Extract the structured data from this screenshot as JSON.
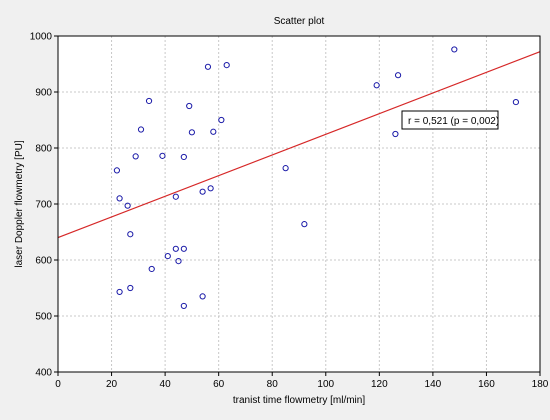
{
  "chart_data": {
    "type": "scatter",
    "title": "Scatter plot",
    "xlabel": "tranist time flowmetry [ml/min]",
    "ylabel": "laser Doppler flowmetry [PU]",
    "xlim": [
      0,
      180
    ],
    "ylim": [
      400,
      1000
    ],
    "xticks": [
      0,
      20,
      40,
      60,
      80,
      100,
      120,
      140,
      160,
      180
    ],
    "yticks": [
      400,
      500,
      600,
      700,
      800,
      900,
      1000
    ],
    "grid": true,
    "colors": {
      "points": "#1a1aa8",
      "regression": "#d62828"
    },
    "points": [
      {
        "x": 22,
        "y": 760
      },
      {
        "x": 23,
        "y": 710
      },
      {
        "x": 23,
        "y": 543
      },
      {
        "x": 26,
        "y": 697
      },
      {
        "x": 27,
        "y": 646
      },
      {
        "x": 27,
        "y": 550
      },
      {
        "x": 29,
        "y": 785
      },
      {
        "x": 31,
        "y": 833
      },
      {
        "x": 34,
        "y": 884
      },
      {
        "x": 35,
        "y": 584
      },
      {
        "x": 39,
        "y": 786
      },
      {
        "x": 41,
        "y": 607
      },
      {
        "x": 44,
        "y": 713
      },
      {
        "x": 44,
        "y": 620
      },
      {
        "x": 45,
        "y": 598
      },
      {
        "x": 47,
        "y": 784
      },
      {
        "x": 47,
        "y": 620
      },
      {
        "x": 47,
        "y": 518
      },
      {
        "x": 49,
        "y": 875
      },
      {
        "x": 50,
        "y": 828
      },
      {
        "x": 54,
        "y": 722
      },
      {
        "x": 54,
        "y": 535
      },
      {
        "x": 56,
        "y": 945
      },
      {
        "x": 57,
        "y": 728
      },
      {
        "x": 58,
        "y": 829
      },
      {
        "x": 61,
        "y": 850
      },
      {
        "x": 63,
        "y": 948
      },
      {
        "x": 85,
        "y": 764
      },
      {
        "x": 92,
        "y": 664
      },
      {
        "x": 119,
        "y": 912
      },
      {
        "x": 126,
        "y": 825
      },
      {
        "x": 127,
        "y": 930
      },
      {
        "x": 148,
        "y": 976
      },
      {
        "x": 171,
        "y": 882
      }
    ],
    "regression_line": {
      "x": [
        0,
        180
      ],
      "y": [
        640,
        972
      ]
    },
    "annotation": {
      "text": "r = 0,521   (p = 0,002)"
    }
  }
}
